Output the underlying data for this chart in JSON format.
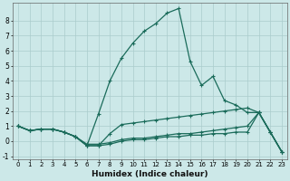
{
  "xlabel": "Humidex (Indice chaleur)",
  "background_color": "#cce8e8",
  "grid_color": "#aacccc",
  "line_color": "#1a6b5a",
  "xlim": [
    -0.5,
    23.5
  ],
  "ylim": [
    -1.2,
    9.2
  ],
  "xticks": [
    0,
    1,
    2,
    3,
    4,
    5,
    6,
    7,
    8,
    9,
    10,
    11,
    12,
    13,
    14,
    15,
    16,
    17,
    18,
    19,
    20,
    21,
    22,
    23
  ],
  "yticks": [
    -1,
    0,
    1,
    2,
    3,
    4,
    5,
    6,
    7,
    8
  ],
  "series": [
    [
      1.0,
      0.7,
      0.8,
      0.8,
      0.6,
      0.3,
      -0.3,
      1.8,
      4.0,
      5.5,
      6.5,
      7.3,
      7.8,
      8.5,
      8.8,
      5.3,
      3.7,
      4.3,
      2.7,
      2.4,
      1.9,
      1.9,
      0.6,
      -0.7
    ],
    [
      1.0,
      0.7,
      0.8,
      0.8,
      0.6,
      0.3,
      -0.3,
      -0.3,
      0.5,
      1.1,
      1.2,
      1.3,
      1.4,
      1.5,
      1.6,
      1.7,
      1.8,
      1.9,
      2.0,
      2.1,
      2.2,
      1.9,
      0.6,
      -0.7
    ],
    [
      1.0,
      0.7,
      0.8,
      0.8,
      0.6,
      0.3,
      -0.3,
      -0.3,
      -0.2,
      0.0,
      0.1,
      0.1,
      0.2,
      0.3,
      0.3,
      0.4,
      0.4,
      0.5,
      0.5,
      0.6,
      0.6,
      1.9,
      0.6,
      -0.7
    ],
    [
      1.0,
      0.7,
      0.8,
      0.8,
      0.6,
      0.3,
      -0.2,
      -0.2,
      -0.1,
      0.1,
      0.2,
      0.2,
      0.3,
      0.4,
      0.5,
      0.5,
      0.6,
      0.7,
      0.8,
      0.9,
      1.0,
      1.9,
      0.6,
      -0.7
    ]
  ]
}
